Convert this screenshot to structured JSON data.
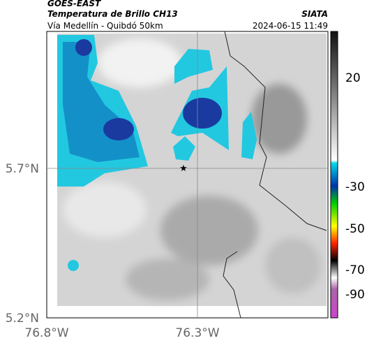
{
  "header": {
    "source": "GOES-EAST",
    "title": "Temperatura de Brillo CH13",
    "subtitle": "Vía Medellín - Quibdó 50km",
    "credit": "SIATA",
    "timestamp": "2024-06-15 11:49"
  },
  "axes": {
    "y_ticks": [
      "5.7°N",
      "5.2°N"
    ],
    "x_ticks": [
      "76.8°W",
      "76.3°W"
    ]
  },
  "colorbar": {
    "ticks": [
      20,
      -30,
      -50,
      -70,
      -90
    ]
  }
}
